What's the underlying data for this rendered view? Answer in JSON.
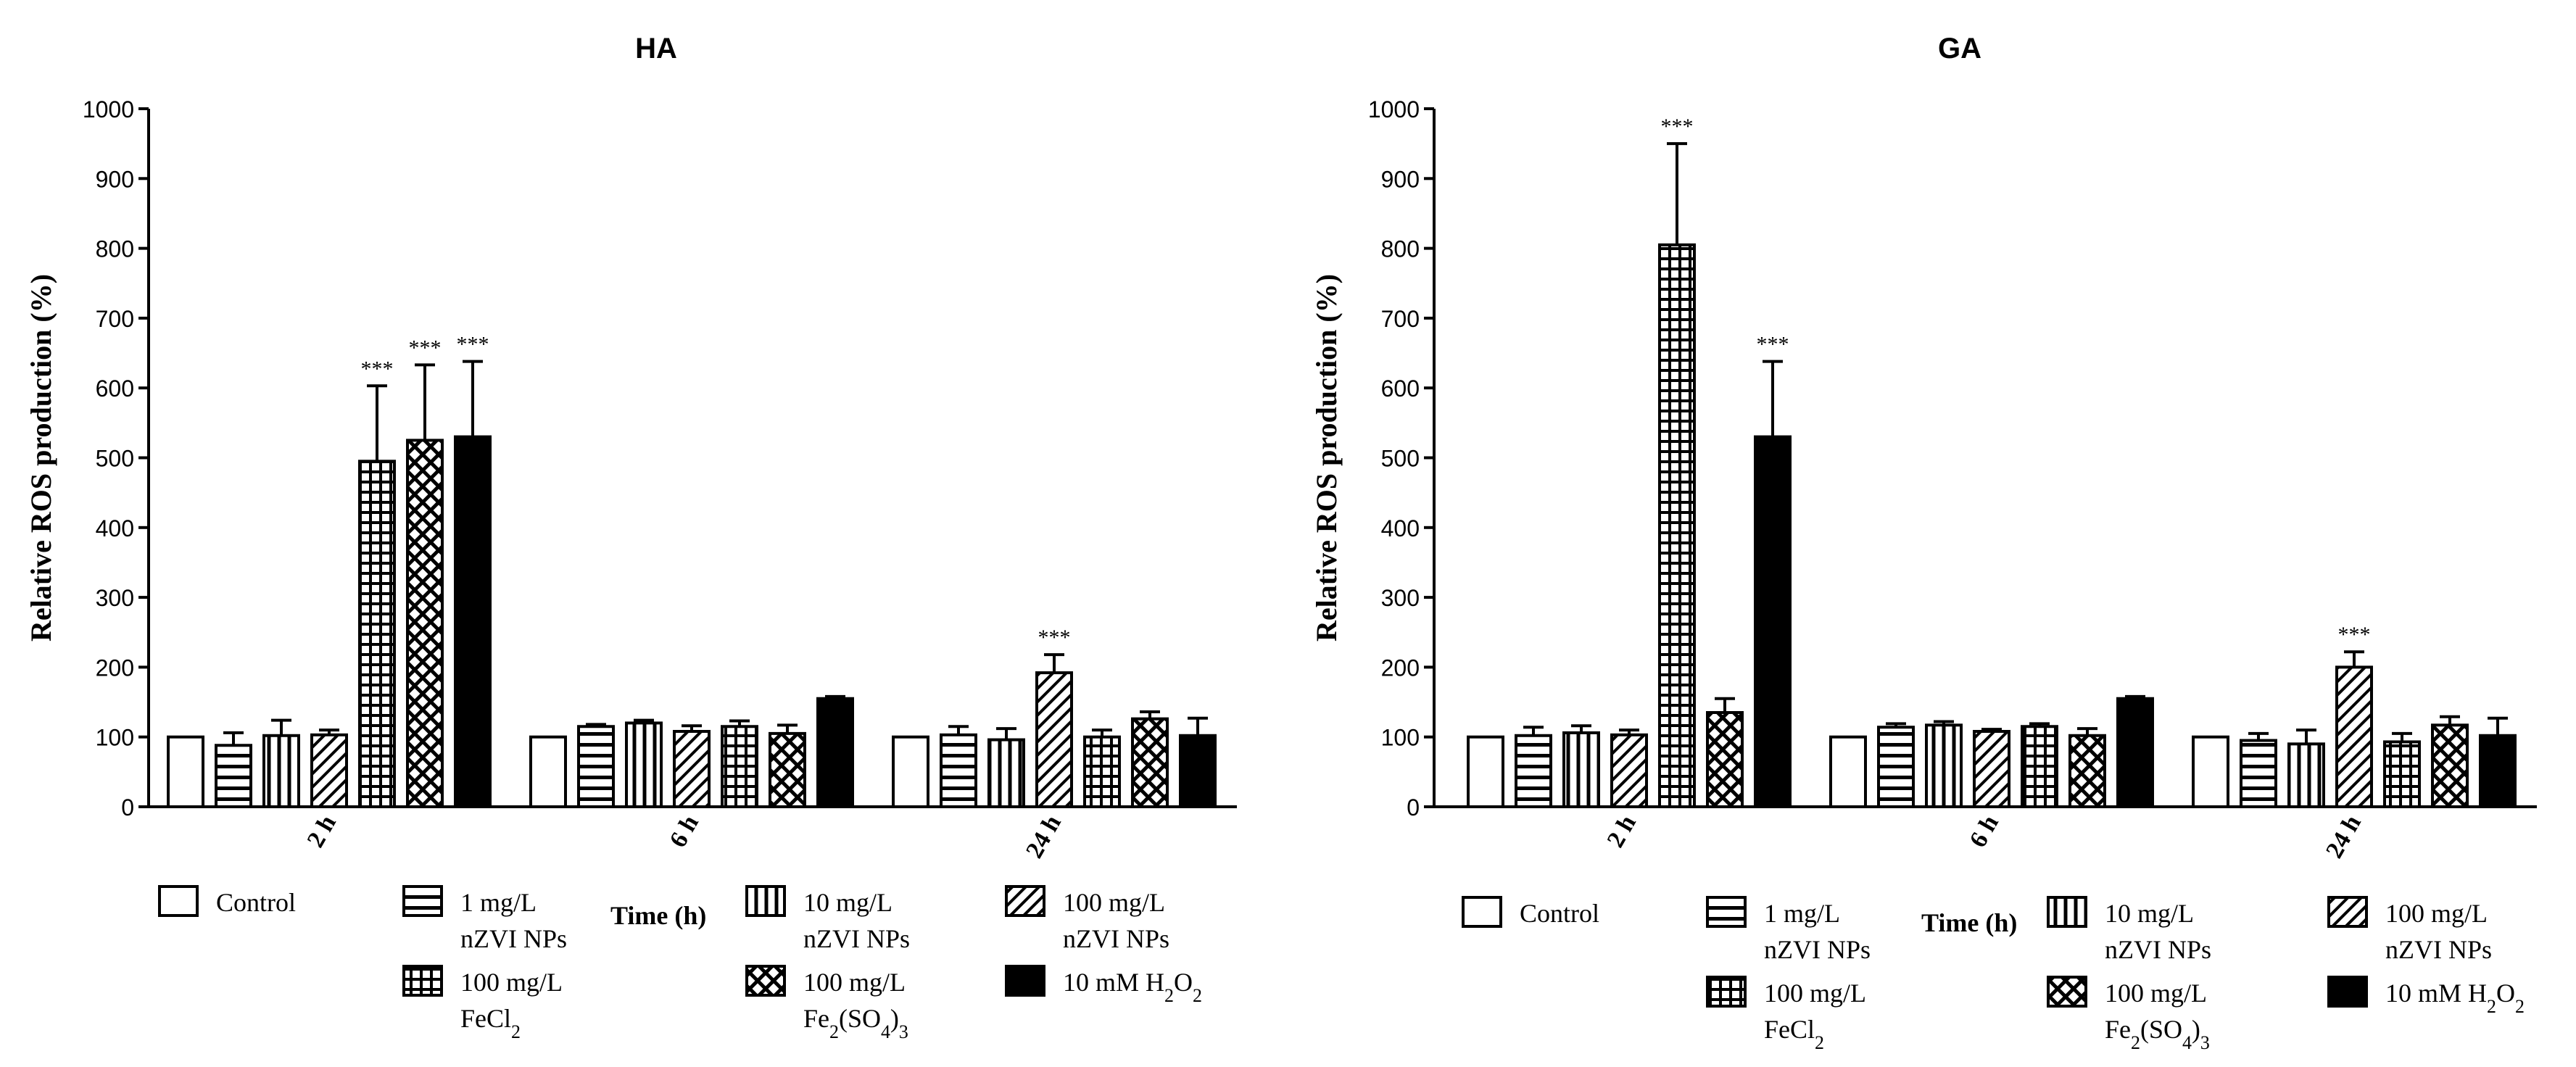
{
  "chart_data": [
    {
      "type": "bar",
      "title": "HA",
      "xlabel": "Time (h)",
      "ylabel": "Relative  ROS production (%)",
      "ylim": [
        0,
        1000
      ],
      "yticks": [
        0,
        100,
        200,
        300,
        400,
        500,
        600,
        700,
        800,
        900,
        1000
      ],
      "categories": [
        "2 h",
        "6 h",
        "24 h"
      ],
      "series": [
        {
          "name": "Control",
          "pattern": "empty",
          "values": [
            100,
            100,
            100
          ],
          "errors": [
            0,
            0,
            0
          ],
          "sig": [
            "",
            "",
            ""
          ]
        },
        {
          "name": "1 mg/L nZVI NPs",
          "pattern": "hlines",
          "values": [
            88,
            115,
            103
          ],
          "errors": [
            18,
            3,
            12
          ],
          "sig": [
            "",
            "",
            ""
          ]
        },
        {
          "name": "10 mg/L nZVI NPs",
          "pattern": "vlines",
          "values": [
            102,
            120,
            96
          ],
          "errors": [
            22,
            4,
            16
          ],
          "sig": [
            "",
            "",
            ""
          ]
        },
        {
          "name": "100 mg/L nZVI NPs",
          "pattern": "diag",
          "values": [
            103,
            108,
            192
          ],
          "errors": [
            7,
            8,
            26
          ],
          "sig": [
            "",
            "",
            "***"
          ]
        },
        {
          "name": "100 mg/L FeCl2",
          "pattern": "grid",
          "values": [
            495,
            115,
            100
          ],
          "errors": [
            108,
            8,
            10
          ],
          "sig": [
            "***",
            "",
            ""
          ]
        },
        {
          "name": "100 mg/L Fe2(SO4)3",
          "pattern": "cross",
          "values": [
            525,
            105,
            126
          ],
          "errors": [
            108,
            12,
            10
          ],
          "sig": [
            "***",
            "",
            ""
          ]
        },
        {
          "name": "10 mM H2O2",
          "pattern": "solid",
          "values": [
            530,
            155,
            102
          ],
          "errors": [
            108,
            3,
            25
          ],
          "sig": [
            "***",
            "",
            ""
          ]
        }
      ]
    },
    {
      "type": "bar",
      "title": "GA",
      "xlabel": "Time (h)",
      "ylabel": "Relative  ROS production (%)",
      "ylim": [
        0,
        1000
      ],
      "yticks": [
        0,
        100,
        200,
        300,
        400,
        500,
        600,
        700,
        800,
        900,
        1000
      ],
      "categories": [
        "2 h",
        "6 h",
        "24 h"
      ],
      "series": [
        {
          "name": "Control",
          "pattern": "empty",
          "values": [
            100,
            100,
            100
          ],
          "errors": [
            0,
            0,
            0
          ],
          "sig": [
            "",
            "",
            ""
          ]
        },
        {
          "name": "1 mg/L nZVI NPs",
          "pattern": "hlines",
          "values": [
            102,
            114,
            95
          ],
          "errors": [
            12,
            5,
            10
          ],
          "sig": [
            "",
            "",
            ""
          ]
        },
        {
          "name": "10 mg/L nZVI NPs",
          "pattern": "vlines",
          "values": [
            106,
            117,
            90
          ],
          "errors": [
            10,
            5,
            20
          ],
          "sig": [
            "",
            "",
            ""
          ]
        },
        {
          "name": "100 mg/L nZVI NPs",
          "pattern": "diag",
          "values": [
            103,
            108,
            200
          ],
          "errors": [
            7,
            3,
            22
          ],
          "sig": [
            "",
            "",
            "***"
          ]
        },
        {
          "name": "100 mg/L FeCl2",
          "pattern": "grid",
          "values": [
            805,
            115,
            93
          ],
          "errors": [
            145,
            4,
            12
          ],
          "sig": [
            "***",
            "",
            ""
          ]
        },
        {
          "name": "100 mg/L Fe2(SO4)3",
          "pattern": "cross",
          "values": [
            135,
            102,
            117
          ],
          "errors": [
            20,
            10,
            12
          ],
          "sig": [
            "",
            "",
            ""
          ]
        },
        {
          "name": "10 mM H2O2",
          "pattern": "solid",
          "values": [
            530,
            155,
            102
          ],
          "errors": [
            108,
            3,
            25
          ],
          "sig": [
            "***",
            "",
            ""
          ]
        }
      ]
    }
  ],
  "legend": [
    {
      "key": "control",
      "line1": "Control",
      "line2": "",
      "pattern": "empty"
    },
    {
      "key": "nzvi1",
      "line1": "1 mg/L",
      "line2": "nZVI NPs",
      "pattern": "hlines"
    },
    {
      "key": "nzvi10",
      "line1": "10 mg/L",
      "line2": "nZVI NPs",
      "pattern": "vlines"
    },
    {
      "key": "nzvi100",
      "line1": "100 mg/L",
      "line2": "nZVI NPs",
      "pattern": "diag"
    },
    {
      "key": "fecl2",
      "line1": "100 mg/L",
      "line2": "FeCl2",
      "pattern": "grid"
    },
    {
      "key": "fe2so43",
      "line1": "100 mg/L",
      "line2": "Fe2(SO4)3",
      "pattern": "cross"
    },
    {
      "key": "h2o2",
      "line1": "10 mM H2O2",
      "line2": "",
      "pattern": "solid"
    }
  ]
}
